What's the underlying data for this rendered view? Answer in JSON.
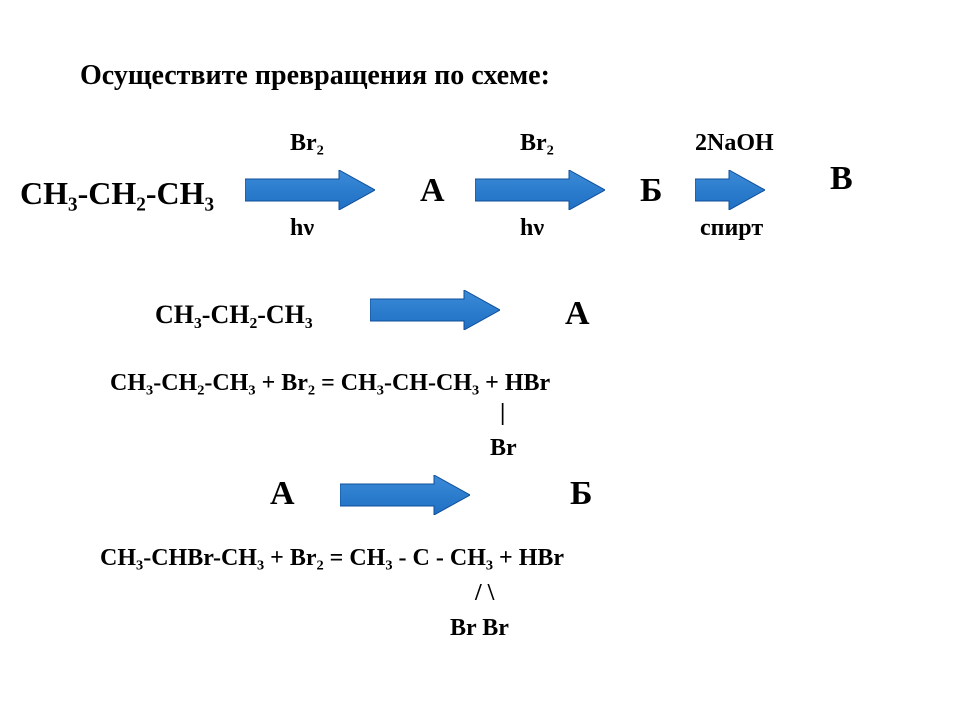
{
  "colors": {
    "arrow_fill": "#1f6fc4",
    "arrow_stroke": "#0f4f9a",
    "text": "#000000",
    "background": "#ffffff"
  },
  "title": "Осуществите превращения по схеме:",
  "row1": {
    "start": "CH₃-CH₂-CH₃",
    "top1": "Br₂",
    "bot1": "hν",
    "A": "А",
    "top2": "Br₂",
    "bot2": "hν",
    "B": "Б",
    "top3": "2NaOH",
    "bot3": "спирт",
    "C": "В"
  },
  "row2": {
    "left": "CH₃-CH₂-CH₃",
    "right": "А"
  },
  "eq1": {
    "line1": "CH₃-CH₂-CH₃ + Br₂ = CH₃-CH-CH₃  +  HBr",
    "line2": "|",
    "line3": "Br"
  },
  "row3": {
    "left": "А",
    "right": "Б"
  },
  "eq2": {
    "line1": "CH₃-CHBr-CH₃ + Br₂ = CH₃ - C - CH₃ + HBr",
    "line2": "/ \\",
    "line3": "Br   Br"
  },
  "arrow": {
    "width_long": 130,
    "width_short": 70,
    "height": 40
  },
  "fontsize": {
    "title": 28,
    "formula_lg": 32,
    "formula_md": 26,
    "formula_sm": 24,
    "letter": 34
  }
}
